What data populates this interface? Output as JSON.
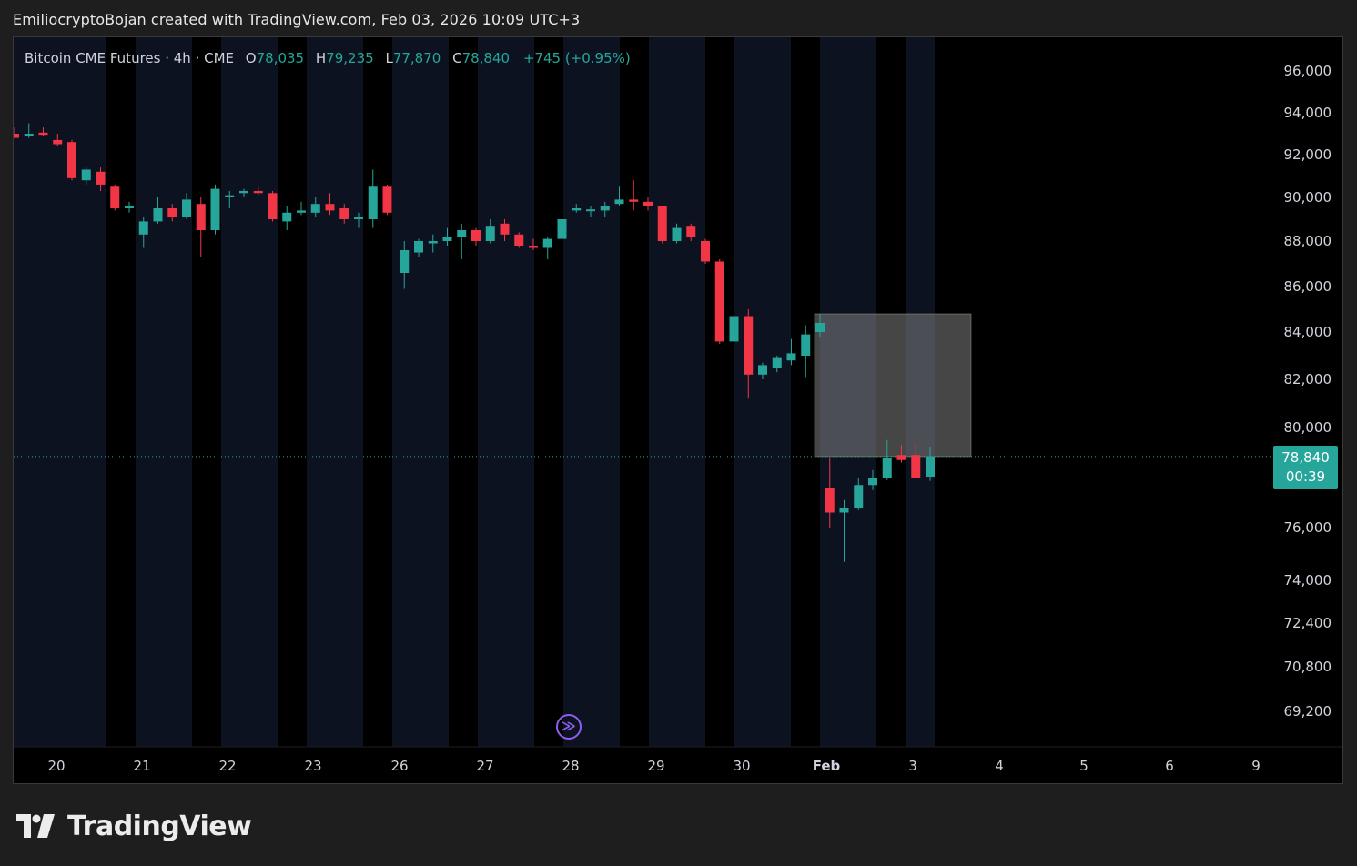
{
  "header": {
    "title": "EmiliocryptoBojan created with TradingView.com, Feb 03, 2026 10:09 UTC+3"
  },
  "legend": {
    "symbol": "Bitcoin CME Futures · 4h · CME",
    "o_label": "O",
    "o_value": "78,035",
    "h_label": "H",
    "h_value": "79,235",
    "l_label": "L",
    "l_value": "77,870",
    "c_label": "C",
    "c_value": "78,840",
    "change": "+745 (+0.95%)"
  },
  "price_tag": {
    "price": "78,840",
    "countdown": "00:39"
  },
  "brand": {
    "name": "TradingView",
    "logo_icon": "tradingview-logo-icon"
  },
  "replay": {
    "icon": "replay-forward-icon",
    "color": "#8e5cf0"
  },
  "colors": {
    "up": "#26a69a",
    "down": "#f23645",
    "background": "#000000",
    "session_band": "#0c1220",
    "zone": "#808080"
  },
  "chart_data": {
    "type": "candlestick",
    "interval": "4h",
    "y_axis_ticks": [
      "96,000",
      "94,000",
      "92,000",
      "90,000",
      "88,000",
      "86,000",
      "84,000",
      "82,000",
      "80,000",
      "76,000",
      "74,000",
      "72,400",
      "70,800",
      "69,200"
    ],
    "y_axis_values": [
      96000,
      94000,
      92000,
      90000,
      88000,
      86000,
      84000,
      82000,
      80000,
      76000,
      74000,
      72400,
      70800,
      69200
    ],
    "x_axis_ticks": [
      "20",
      "21",
      "22",
      "23",
      "26",
      "27",
      "28",
      "29",
      "30",
      "Feb",
      "3",
      "4",
      "5",
      "6",
      "9"
    ],
    "last_price": 78840,
    "zone": {
      "price_top": 84800,
      "price_bottom": 78840
    },
    "candles": [
      {
        "o": 93000,
        "h": 93300,
        "l": 92800,
        "c": 92800
      },
      {
        "o": 92900,
        "h": 93500,
        "l": 92800,
        "c": 93000
      },
      {
        "o": 93050,
        "h": 93300,
        "l": 92900,
        "c": 92950
      },
      {
        "o": 92700,
        "h": 93000,
        "l": 92400,
        "c": 92500
      },
      {
        "o": 92600,
        "h": 92700,
        "l": 90800,
        "c": 90900
      },
      {
        "o": 90800,
        "h": 91400,
        "l": 90600,
        "c": 91300
      },
      {
        "o": 91200,
        "h": 91400,
        "l": 90300,
        "c": 90600
      },
      {
        "o": 90500,
        "h": 90600,
        "l": 89400,
        "c": 89500
      },
      {
        "o": 89500,
        "h": 89800,
        "l": 89300,
        "c": 89600
      },
      {
        "o": 88300,
        "h": 89100,
        "l": 87700,
        "c": 88900
      },
      {
        "o": 88900,
        "h": 90000,
        "l": 88800,
        "c": 89500
      },
      {
        "o": 89500,
        "h": 89700,
        "l": 88900,
        "c": 89100
      },
      {
        "o": 89100,
        "h": 90200,
        "l": 89000,
        "c": 89900
      },
      {
        "o": 89700,
        "h": 90000,
        "l": 87300,
        "c": 88500
      },
      {
        "o": 88500,
        "h": 90600,
        "l": 88300,
        "c": 90400
      },
      {
        "o": 90000,
        "h": 90300,
        "l": 89500,
        "c": 90100
      },
      {
        "o": 90200,
        "h": 90400,
        "l": 90000,
        "c": 90300
      },
      {
        "o": 90300,
        "h": 90500,
        "l": 90100,
        "c": 90200
      },
      {
        "o": 90200,
        "h": 90300,
        "l": 88900,
        "c": 89000
      },
      {
        "o": 88900,
        "h": 89600,
        "l": 88500,
        "c": 89300
      },
      {
        "o": 89300,
        "h": 89800,
        "l": 89200,
        "c": 89400
      },
      {
        "o": 89300,
        "h": 90000,
        "l": 89100,
        "c": 89700
      },
      {
        "o": 89700,
        "h": 90200,
        "l": 89200,
        "c": 89400
      },
      {
        "o": 89500,
        "h": 89700,
        "l": 88800,
        "c": 89000
      },
      {
        "o": 89000,
        "h": 89300,
        "l": 88600,
        "c": 89100
      },
      {
        "o": 89000,
        "h": 91300,
        "l": 88600,
        "c": 90500
      },
      {
        "o": 90500,
        "h": 90600,
        "l": 89200,
        "c": 89300
      },
      {
        "o": 86600,
        "h": 88000,
        "l": 85900,
        "c": 87600
      },
      {
        "o": 87500,
        "h": 88100,
        "l": 87300,
        "c": 88000
      },
      {
        "o": 87900,
        "h": 88300,
        "l": 87500,
        "c": 88000
      },
      {
        "o": 88000,
        "h": 88600,
        "l": 87800,
        "c": 88200
      },
      {
        "o": 88200,
        "h": 88800,
        "l": 87200,
        "c": 88500
      },
      {
        "o": 88500,
        "h": 88600,
        "l": 87800,
        "c": 88000
      },
      {
        "o": 88000,
        "h": 89000,
        "l": 87900,
        "c": 88700
      },
      {
        "o": 88800,
        "h": 89000,
        "l": 88000,
        "c": 88300
      },
      {
        "o": 88300,
        "h": 88400,
        "l": 87700,
        "c": 87800
      },
      {
        "o": 87800,
        "h": 88100,
        "l": 87600,
        "c": 87700
      },
      {
        "o": 87700,
        "h": 88200,
        "l": 87200,
        "c": 88100
      },
      {
        "o": 88100,
        "h": 89300,
        "l": 88000,
        "c": 89000
      },
      {
        "o": 89400,
        "h": 89700,
        "l": 89300,
        "c": 89500
      },
      {
        "o": 89400,
        "h": 89600,
        "l": 89100,
        "c": 89450
      },
      {
        "o": 89400,
        "h": 89800,
        "l": 89100,
        "c": 89600
      },
      {
        "o": 89700,
        "h": 90500,
        "l": 89600,
        "c": 89900
      },
      {
        "o": 89900,
        "h": 90800,
        "l": 89400,
        "c": 89800
      },
      {
        "o": 89800,
        "h": 90000,
        "l": 89400,
        "c": 89600
      },
      {
        "o": 89600,
        "h": 89600,
        "l": 87900,
        "c": 88000
      },
      {
        "o": 88000,
        "h": 88800,
        "l": 87900,
        "c": 88600
      },
      {
        "o": 88700,
        "h": 88800,
        "l": 88000,
        "c": 88200
      },
      {
        "o": 88000,
        "h": 88100,
        "l": 87000,
        "c": 87100
      },
      {
        "o": 87100,
        "h": 87200,
        "l": 83500,
        "c": 83600
      },
      {
        "o": 83600,
        "h": 84800,
        "l": 83500,
        "c": 84700
      },
      {
        "o": 84700,
        "h": 85000,
        "l": 81200,
        "c": 82200
      },
      {
        "o": 82200,
        "h": 82700,
        "l": 82000,
        "c": 82600
      },
      {
        "o": 82500,
        "h": 83000,
        "l": 82300,
        "c": 82900
      },
      {
        "o": 82800,
        "h": 83700,
        "l": 82600,
        "c": 83100
      },
      {
        "o": 83000,
        "h": 84300,
        "l": 82100,
        "c": 83900
      },
      {
        "o": 84000,
        "h": 84800,
        "l": 83800,
        "c": 84400
      },
      {
        "o": 77600,
        "h": 78800,
        "l": 76000,
        "c": 76600
      },
      {
        "o": 76600,
        "h": 77100,
        "l": 74700,
        "c": 76800
      },
      {
        "o": 76800,
        "h": 78000,
        "l": 76700,
        "c": 77700
      },
      {
        "o": 77700,
        "h": 78300,
        "l": 77500,
        "c": 78000
      },
      {
        "o": 78000,
        "h": 79500,
        "l": 77900,
        "c": 78800
      },
      {
        "o": 78900,
        "h": 79300,
        "l": 78600,
        "c": 78700
      },
      {
        "o": 78900,
        "h": 79400,
        "l": 78000,
        "c": 78000
      },
      {
        "o": 78035,
        "h": 79235,
        "l": 77870,
        "c": 78840
      }
    ]
  }
}
